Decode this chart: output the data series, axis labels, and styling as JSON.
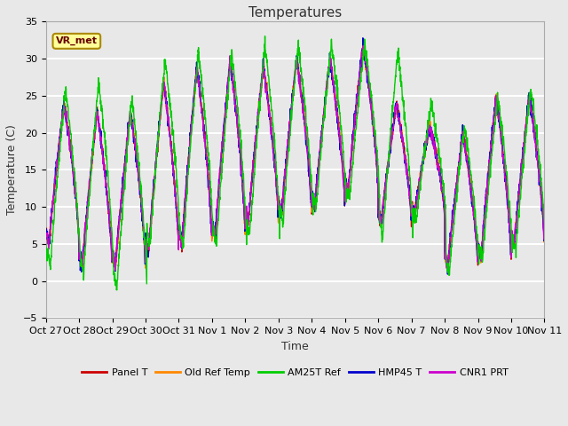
{
  "title": "Temperatures",
  "xlabel": "Time",
  "ylabel": "Temperature (C)",
  "ylim": [
    -5,
    35
  ],
  "n_days": 15,
  "background_color": "#e8e8e8",
  "grid_color": "white",
  "annotation_text": "VR_met",
  "series_colors": {
    "Panel T": "#cc0000",
    "Old Ref Temp": "#ff8800",
    "AM25T Ref": "#00cc00",
    "HMP45 T": "#0000cc",
    "CNR1 PRT": "#cc00cc"
  },
  "x_tick_labels": [
    "Oct 27",
    "Oct 28",
    "Oct 29",
    "Oct 30",
    "Oct 31",
    "Nov 1",
    "Nov 2",
    "Nov 3",
    "Nov 4",
    "Nov 5",
    "Nov 6",
    "Nov 7",
    "Nov 8",
    "Nov 9",
    "Nov 10",
    "Nov 11"
  ],
  "legend_entries": [
    "Panel T",
    "Old Ref Temp",
    "AM25T Ref",
    "HMP45 T",
    "CNR1 PRT"
  ],
  "figsize": [
    6.4,
    4.8
  ],
  "dpi": 100
}
